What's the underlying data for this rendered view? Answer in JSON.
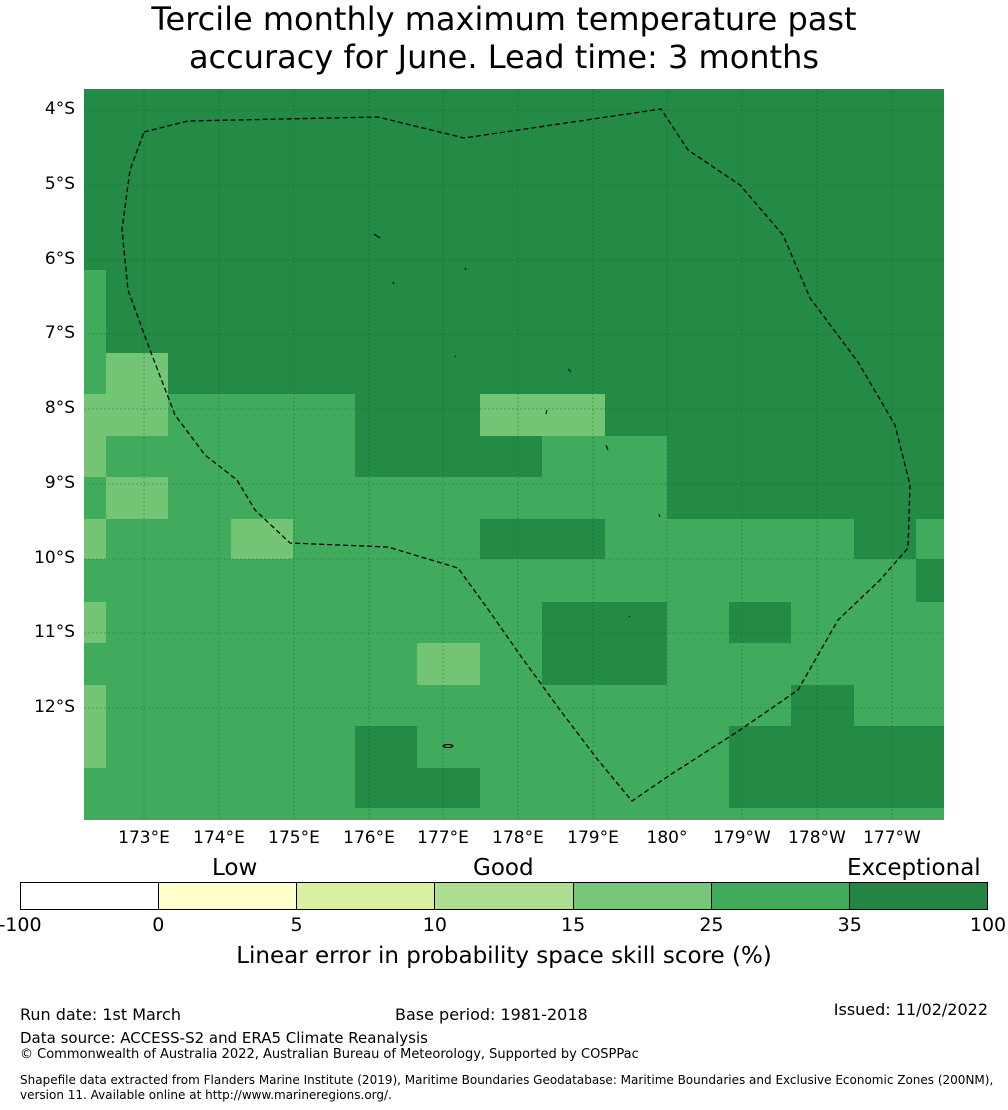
{
  "title_line1": "Tercile monthly maximum temperature past",
  "title_line2": "accuracy for June. Lead time: 3 months",
  "map": {
    "lat_labels": [
      "4°S",
      "5°S",
      "6°S",
      "7°S",
      "8°S",
      "9°S",
      "10°S",
      "11°S",
      "12°S"
    ],
    "lon_labels": [
      "173°E",
      "174°E",
      "175°E",
      "176°E",
      "177°E",
      "178°E",
      "179°E",
      "180°",
      "179°W",
      "178°W",
      "177°W"
    ],
    "colors": {
      "dark": "#238b45",
      "mid": "#41ab5d",
      "light": "#74c476"
    }
  },
  "legend": {
    "category_low": "Low",
    "category_good": "Good",
    "category_exceptional": "Exceptional",
    "colors": [
      "#ffffff",
      "#ffffcc",
      "#d9f0a3",
      "#addd8e",
      "#78c679",
      "#41ab5d",
      "#238443"
    ],
    "ticks": [
      "-100",
      "0",
      "5",
      "10",
      "15",
      "25",
      "35",
      "100"
    ],
    "axis_label": "Linear error in probability space skill score (%)"
  },
  "footer": {
    "run_date": "Run date: 1st March",
    "base_period": "Base period: 1981-2018",
    "issued": "Issued: 11/02/2022",
    "data_source": "Data source: ACCESS-S2 and ERA5 Climate Reanalysis",
    "copyright": "© Commonwealth of Australia 2022, Australian Bureau of Meteorology, Supported by COSPPac",
    "shapefile": "Shapefile data extracted from Flanders Marine Institute (2019), Maritime Boundaries Geodatabase: Maritime Boundaries and Exclusive Economic Zones (200NM), version 11. Available online at http://www.marineregions.org/."
  }
}
